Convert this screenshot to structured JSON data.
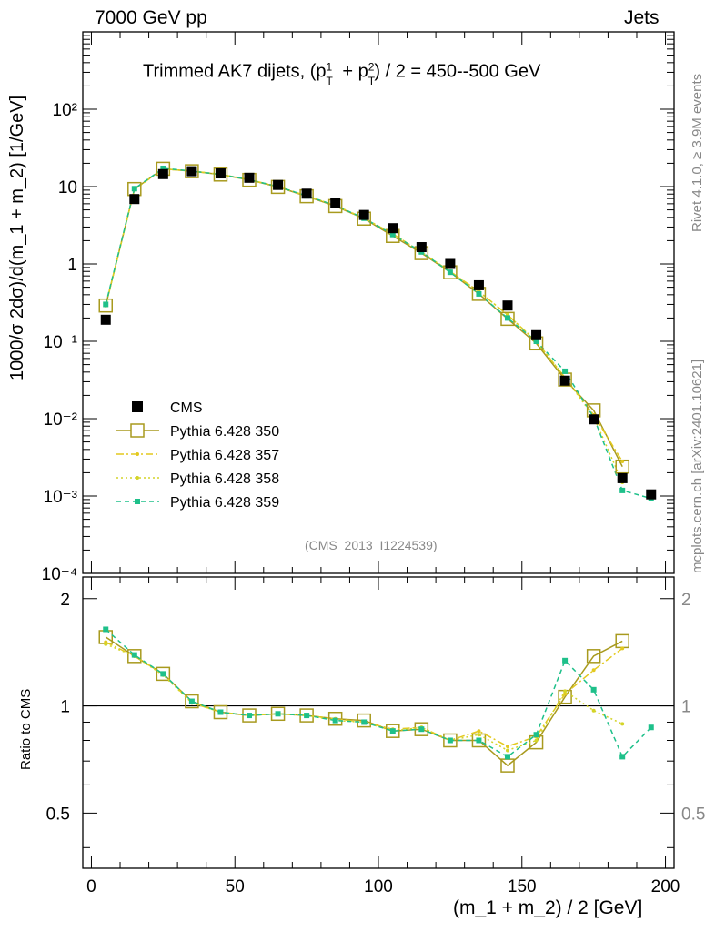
{
  "header": {
    "energy_label": "7000 GeV pp",
    "category_label": "Jets"
  },
  "side_labels": {
    "rivet": "Rivet 4.1.0, ≥ 3.9M events",
    "mcplots": "mcplots.cern.ch [arXiv:2401.10621]"
  },
  "chart_data": {
    "type": "scatter",
    "title_main": "Trimmed AK7 dijets, (p",
    "title_rest": "/ 2 = 450--500 GeV",
    "analysis_id": "(CMS_2013_I1224539)",
    "ylabel": "1000/σ  2dσ)/d(m_1 + m_2) [1/GeV]",
    "ratio_ylabel": "Ratio to CMS",
    "xlabel": "(m_1 + m_2) / 2 [GeV]",
    "xlim": [
      -3,
      203
    ],
    "ylim": [
      0.0001,
      1000
    ],
    "ratio_ylim": [
      0.35,
      2.3
    ],
    "x_ticks": [
      "0",
      "50",
      "100",
      "150",
      "200"
    ],
    "y_ticks": [
      "10⁻⁴",
      "10⁻³",
      "10⁻²",
      "10⁻¹",
      "1",
      "10",
      "10²"
    ],
    "ratio_ticks": [
      "0.5",
      "1",
      "2"
    ],
    "x": [
      5,
      15,
      25,
      35,
      45,
      55,
      65,
      75,
      85,
      95,
      105,
      115,
      125,
      135,
      145,
      155,
      165,
      175,
      185,
      195
    ],
    "series": [
      {
        "name": "CMS",
        "color": "#000000",
        "values": [
          0.19,
          6.9,
          14.5,
          15.8,
          14.8,
          13.0,
          10.5,
          8.1,
          6.2,
          4.3,
          2.9,
          1.65,
          1.0,
          0.53,
          0.29,
          0.12,
          0.031,
          0.0098,
          0.0017,
          0.00105
        ]
      },
      {
        "name": "Pythia 6.428 350",
        "color": "#a89a1e",
        "values": [
          0.29,
          9.3,
          17.0,
          15.8,
          14.3,
          12.2,
          9.9,
          7.5,
          5.6,
          3.85,
          2.3,
          1.38,
          0.78,
          0.41,
          0.195,
          0.094,
          0.032,
          0.0128,
          0.0024,
          null
        ]
      },
      {
        "name": "Pythia 6.428 357",
        "color": "#e3c91f",
        "values": [
          0.29,
          9.2,
          16.9,
          15.9,
          14.4,
          12.3,
          10.0,
          7.6,
          5.7,
          3.9,
          2.45,
          1.42,
          0.8,
          0.44,
          0.22,
          0.1,
          0.034,
          0.0112,
          0.0028,
          null
        ]
      },
      {
        "name": "Pythia 6.428 358",
        "color": "#d4d428",
        "values": [
          0.29,
          9.2,
          16.9,
          15.9,
          14.4,
          12.3,
          10.0,
          7.6,
          5.7,
          3.9,
          2.45,
          1.42,
          0.8,
          0.44,
          0.22,
          0.1,
          0.034,
          0.0106,
          0.0015,
          null
        ]
      },
      {
        "name": "Pythia 6.428 359",
        "color": "#1ec08a",
        "values": [
          0.3,
          9.4,
          17.2,
          15.9,
          14.3,
          12.3,
          10.0,
          7.6,
          5.7,
          3.9,
          2.4,
          1.43,
          0.78,
          0.41,
          0.2,
          0.1,
          0.041,
          0.0104,
          0.00118,
          0.00093
        ]
      }
    ],
    "ratio_series": [
      {
        "name": "Pythia 6.428 350",
        "values": [
          1.56,
          1.38,
          1.23,
          1.03,
          0.96,
          0.94,
          0.95,
          0.94,
          0.92,
          0.91,
          0.85,
          0.86,
          0.8,
          0.8,
          0.68,
          0.79,
          1.06,
          1.38,
          1.52,
          null
        ]
      },
      {
        "name": "Pythia 6.428 357",
        "values": [
          1.51,
          1.38,
          1.23,
          1.02,
          0.96,
          0.94,
          0.95,
          0.94,
          0.92,
          0.9,
          0.86,
          0.87,
          0.8,
          0.85,
          0.77,
          0.82,
          1.08,
          1.26,
          1.45,
          null
        ]
      },
      {
        "name": "Pythia 6.428 358",
        "values": [
          1.49,
          1.38,
          1.22,
          1.02,
          0.96,
          0.94,
          0.95,
          0.94,
          0.91,
          0.9,
          0.85,
          0.87,
          0.8,
          0.83,
          0.75,
          0.8,
          1.1,
          0.97,
          0.89,
          null
        ]
      },
      {
        "name": "Pythia 6.428 359",
        "values": [
          1.64,
          1.39,
          1.23,
          1.03,
          0.96,
          0.94,
          0.95,
          0.94,
          0.91,
          0.9,
          0.85,
          0.86,
          0.8,
          0.8,
          0.72,
          0.83,
          1.34,
          1.11,
          0.72,
          0.87
        ]
      }
    ]
  }
}
